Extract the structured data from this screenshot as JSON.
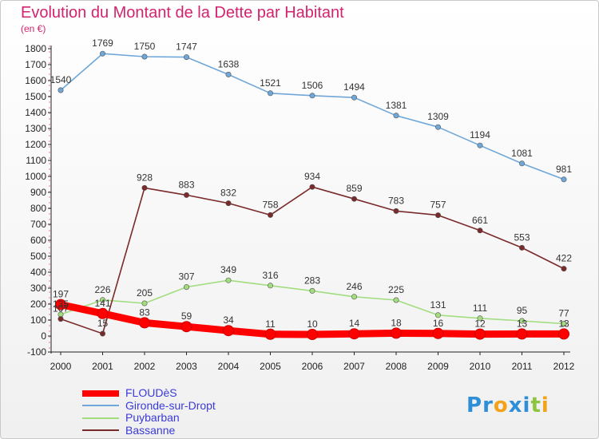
{
  "chart_data": {
    "type": "line",
    "title": "Evolution du Montant de la Dette par Habitant",
    "subtitle": "(en €)",
    "x": [
      "2000",
      "2001",
      "2002",
      "2003",
      "2004",
      "2005",
      "2006",
      "2007",
      "2008",
      "2009",
      "2010",
      "2011",
      "2012"
    ],
    "ylim": [
      -100,
      1800
    ],
    "yticks": [
      -100,
      0,
      100,
      200,
      300,
      400,
      500,
      600,
      700,
      800,
      900,
      1000,
      1100,
      1200,
      1300,
      1400,
      1500,
      1600,
      1700,
      1800
    ],
    "grid": false,
    "legend_placement": "bottom-left",
    "series": [
      {
        "name": "FLOUDèS",
        "color": "#ff0000",
        "values": [
          197,
          141,
          83,
          59,
          34,
          11,
          10,
          14,
          18,
          16,
          12,
          13,
          13
        ]
      },
      {
        "name": "Gironde-sur-Dropt",
        "color": "#6fa7d8",
        "values": [
          1540,
          1769,
          1750,
          1747,
          1638,
          1521,
          1506,
          1494,
          1381,
          1309,
          1194,
          1081,
          981
        ]
      },
      {
        "name": "Puybarban",
        "color": "#a2dd80",
        "values": [
          135,
          226,
          205,
          307,
          349,
          316,
          283,
          246,
          225,
          131,
          111,
          95,
          77
        ]
      },
      {
        "name": "Bassanne",
        "color": "#7a2a2a",
        "values": [
          107,
          15,
          928,
          883,
          832,
          758,
          934,
          859,
          783,
          757,
          661,
          553,
          422
        ]
      }
    ]
  },
  "logo": {
    "text": "Proxiti",
    "letters": [
      {
        "ch": "P",
        "color": "#2e8fd8"
      },
      {
        "ch": "r",
        "color": "#2e8fd8"
      },
      {
        "ch": "o",
        "color": "#f4a21a"
      },
      {
        "ch": "x",
        "color": "#2e8fd8"
      },
      {
        "ch": "i",
        "color": "#2e8fd8"
      },
      {
        "ch": "t",
        "color": "#8cc63f"
      },
      {
        "ch": "i",
        "color": "#f4a21a"
      }
    ]
  }
}
